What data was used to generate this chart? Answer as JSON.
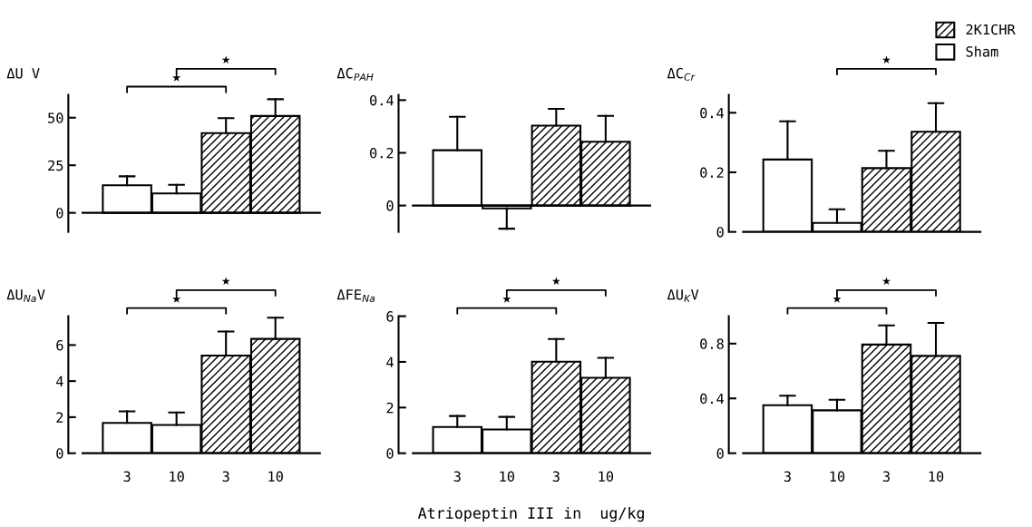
{
  "chart_data": [
    {
      "type": "bar",
      "ylabel": "ΔU V",
      "categories": [
        "3",
        "10",
        "3",
        "10"
      ],
      "ylim": [
        -10,
        62
      ],
      "yticks": [
        0,
        25,
        50
      ],
      "tick_labels": "y",
      "annotations": [
        "★",
        "★"
      ],
      "series": [
        {
          "color": "#ffffff",
          "values": [
            14.5,
            10.2,
            null,
            null
          ],
          "errors": [
            [
              14.5,
              19.2
            ],
            [
              10.2,
              14.7
            ],
            null,
            null
          ]
        },
        {
          "color": "#000000",
          "values": [
            null,
            null,
            41.9,
            50.9
          ],
          "errors": [
            null,
            null,
            [
              41.9,
              49.8
            ],
            [
              50.9,
              59.7
            ]
          ]
        }
      ]
    },
    {
      "type": "bar",
      "ylabel": "ΔC$_{PAH}$",
      "categories": [
        "3",
        "10",
        "3",
        "10"
      ],
      "ylim": [
        -0.1,
        0.42
      ],
      "yticks": [
        0,
        0.2,
        0.4
      ],
      "tick_labels": "y",
      "series": [
        {
          "color": "#ffffff",
          "values": [
            0.21,
            -0.011,
            null,
            null
          ],
          "errors": [
            [
              0.21,
              0.337
            ],
            [
              -0.088,
              -0.011
            ],
            null,
            null
          ]
        },
        {
          "color": "#000000",
          "values": [
            null,
            null,
            0.303,
            0.242
          ],
          "errors": [
            null,
            null,
            [
              0.303,
              0.367
            ],
            [
              0.242,
              0.34
            ]
          ]
        }
      ]
    },
    {
      "type": "bar",
      "ylabel": "ΔC$_{Cr}$",
      "categories": [
        "3",
        "10",
        "3",
        "10"
      ],
      "ylim": [
        0,
        0.46
      ],
      "yticks": [
        0,
        0.2,
        0.4
      ],
      "tick_labels": "y",
      "annotations": [
        "★"
      ],
      "legend": "top right",
      "series": [
        {
          "name": "Sham",
          "color": "#ffffff",
          "values": [
            0.243,
            0.03,
            null,
            null
          ],
          "errors": [
            [
              0.243,
              0.371
            ],
            [
              0.03,
              0.076
            ],
            null,
            null
          ]
        },
        {
          "name": "2K1CHR",
          "color": "#000000",
          "values": [
            null,
            null,
            0.214,
            0.336
          ],
          "errors": [
            null,
            null,
            [
              0.214,
              0.272
            ],
            [
              0.336,
              0.432
            ]
          ]
        }
      ]
    },
    {
      "type": "bar",
      "ylabel": "ΔU$_{Na}$V",
      "categories": [
        "3",
        "10",
        "3",
        "10"
      ],
      "ylim": [
        0,
        7.6
      ],
      "yticks": [
        0,
        2,
        4,
        6
      ],
      "annotations": [
        "★",
        "★"
      ],
      "series": [
        {
          "color": "#ffffff",
          "values": [
            1.68,
            1.57,
            null,
            null
          ],
          "errors": [
            [
              1.68,
              2.32
            ],
            [
              1.57,
              2.26
            ],
            null,
            null
          ]
        },
        {
          "color": "#000000",
          "values": [
            null,
            null,
            5.42,
            6.34
          ],
          "errors": [
            null,
            null,
            [
              5.42,
              6.75
            ],
            [
              6.34,
              7.52
            ]
          ]
        }
      ]
    },
    {
      "type": "bar",
      "ylabel": "ΔFE$_{Na}$",
      "xlabel": "Atriopeptin III in  ug/kg",
      "categories": [
        "3",
        "10",
        "3",
        "10"
      ],
      "ylim": [
        0,
        6
      ],
      "yticks": [
        0,
        2,
        4,
        6
      ],
      "annotations": [
        "★",
        "★"
      ],
      "series": [
        {
          "color": "#ffffff",
          "values": [
            1.15,
            1.04,
            null,
            null
          ],
          "errors": [
            [
              1.15,
              1.63
            ],
            [
              1.04,
              1.59
            ],
            null,
            null
          ]
        },
        {
          "color": "#000000",
          "values": [
            null,
            null,
            4.01,
            3.3
          ],
          "errors": [
            null,
            null,
            [
              4.01,
              5.0
            ],
            [
              3.3,
              4.18
            ]
          ]
        }
      ]
    },
    {
      "type": "bar",
      "ylabel": "ΔU$_{K}$V",
      "categories": [
        "3",
        "10",
        "3",
        "10"
      ],
      "ylim": [
        0,
        1
      ],
      "yticks": [
        0,
        0.4,
        0.8
      ],
      "annotations": [
        "★",
        "★"
      ],
      "series": [
        {
          "color": "#ffffff",
          "values": [
            0.35,
            0.313,
            null,
            null
          ],
          "errors": [
            [
              0.35,
              0.42
            ],
            [
              0.313,
              0.39
            ],
            null,
            null
          ]
        },
        {
          "color": "#000000",
          "values": [
            null,
            null,
            0.793,
            0.71
          ],
          "errors": [
            null,
            null,
            [
              0.793,
              0.933
            ],
            [
              0.71,
              0.951
            ]
          ]
        }
      ]
    }
  ]
}
